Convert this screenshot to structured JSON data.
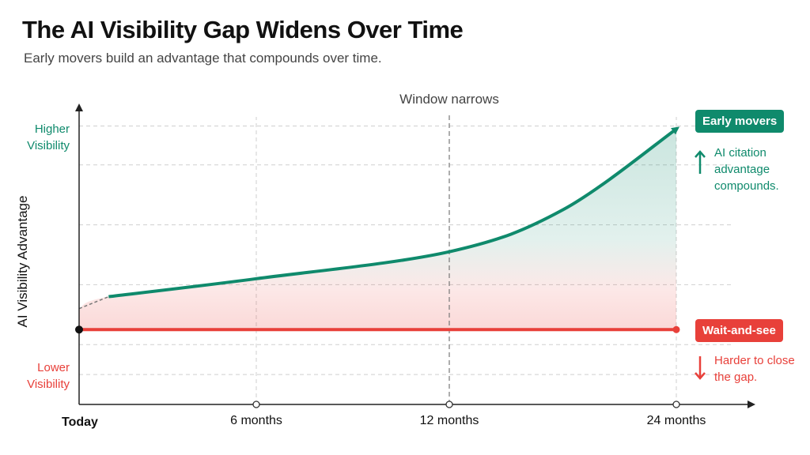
{
  "title": "The AI Visibility Gap Widens Over Time",
  "subtitle": "Early movers build an advantage that compounds over time.",
  "colors": {
    "early": "#0f8a6c",
    "wait": "#e8403a",
    "axis": "#222222",
    "grid": "#cfcfcf"
  },
  "annotations": {
    "early_badge": "Early movers",
    "early_note": "AI citation advantage compounds.",
    "wait_badge": "Wait-and-see",
    "wait_note": "Harder to close the gap.",
    "window_label": "Window narrows",
    "y_high": "Higher Visibility",
    "y_low": "Lower Visibility",
    "up_icon": "arrow-up-icon",
    "down_icon": "arrow-down-icon"
  },
  "chart_data": {
    "type": "line",
    "title": "The AI Visibility Gap Widens Over Time",
    "subtitle": "Early movers build an advantage that compounds over time.",
    "xlabel": "",
    "ylabel": "AI Visibility Advantage",
    "x_ticks": [
      {
        "label": "Today",
        "month": 0
      },
      {
        "label": "6 months",
        "month": 6
      },
      {
        "label": "12 months",
        "month": 12
      },
      {
        "label": "24 months",
        "month": 24
      }
    ],
    "xlim": [
      0,
      24
    ],
    "ylim": [
      0,
      10
    ],
    "y_level_labels": [
      "Lower Visibility",
      "Higher Visibility"
    ],
    "grid": true,
    "reference_line": {
      "month": 12,
      "label": "Window narrows"
    },
    "series": [
      {
        "name": "Early movers",
        "color": "#0f8a6c",
        "points": [
          {
            "month": 0,
            "value": 3.2
          },
          {
            "month": 1,
            "value": 3.6
          },
          {
            "month": 6,
            "value": 4.2
          },
          {
            "month": 12,
            "value": 5.1
          },
          {
            "month": 18,
            "value": 6.5
          },
          {
            "month": 24,
            "value": 9.2
          }
        ]
      },
      {
        "name": "Wait-and-see",
        "color": "#e8403a",
        "points": [
          {
            "month": 0,
            "value": 2.5
          },
          {
            "month": 24,
            "value": 2.5
          }
        ]
      }
    ]
  }
}
